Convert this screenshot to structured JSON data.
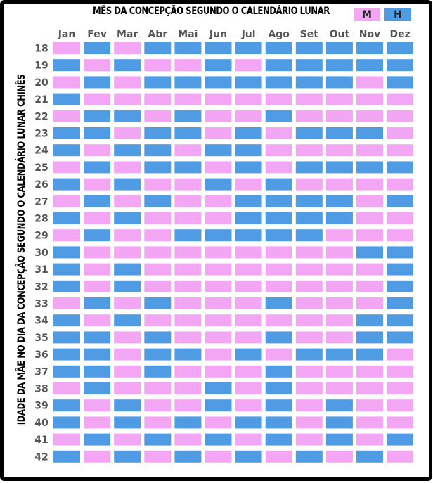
{
  "chart_data": {
    "type": "heatmap",
    "title": "MÊS DA CONCEPÇÃO SEGUNDO O CALENDÁRIO LUNAR",
    "xlabel": "MÊS DA CONCEPÇÃO SEGUNDO O CALENDÁRIO LUNAR",
    "ylabel": "IDADE DA MÃE NO DIA DA CONCEPÇÃO SEGUNDO O CALENDÁRIO LUNAR CHINÊS",
    "x_categories": [
      "Jan",
      "Fev",
      "Mar",
      "Abr",
      "Mai",
      "Jun",
      "Jul",
      "Ago",
      "Set",
      "Out",
      "Nov",
      "Dez"
    ],
    "y_categories": [
      "18",
      "19",
      "20",
      "21",
      "22",
      "23",
      "24",
      "25",
      "26",
      "27",
      "28",
      "29",
      "30",
      "31",
      "32",
      "33",
      "34",
      "35",
      "36",
      "37",
      "38",
      "39",
      "40",
      "41",
      "42"
    ],
    "legend": [
      {
        "label": "M",
        "color": "#f3a6f3"
      },
      {
        "label": "H",
        "color": "#4f9be4"
      }
    ],
    "colors": {
      "M": "#f3a6f3",
      "H": "#4f9be4"
    },
    "cells": [
      [
        "M",
        "H",
        "M",
        "H",
        "H",
        "H",
        "H",
        "H",
        "H",
        "H",
        "H",
        "H"
      ],
      [
        "H",
        "M",
        "H",
        "M",
        "M",
        "H",
        "M",
        "H",
        "H",
        "H",
        "H",
        "H"
      ],
      [
        "M",
        "H",
        "M",
        "H",
        "H",
        "H",
        "H",
        "H",
        "H",
        "H",
        "M",
        "H"
      ],
      [
        "H",
        "M",
        "M",
        "M",
        "M",
        "M",
        "M",
        "M",
        "M",
        "M",
        "M",
        "M"
      ],
      [
        "M",
        "H",
        "H",
        "M",
        "H",
        "M",
        "M",
        "H",
        "M",
        "M",
        "M",
        "M"
      ],
      [
        "H",
        "H",
        "M",
        "H",
        "H",
        "M",
        "H",
        "M",
        "H",
        "H",
        "H",
        "M"
      ],
      [
        "H",
        "M",
        "H",
        "H",
        "M",
        "H",
        "H",
        "M",
        "M",
        "M",
        "M",
        "M"
      ],
      [
        "M",
        "H",
        "M",
        "H",
        "H",
        "M",
        "H",
        "M",
        "H",
        "H",
        "H",
        "H"
      ],
      [
        "H",
        "M",
        "H",
        "M",
        "M",
        "H",
        "M",
        "H",
        "M",
        "M",
        "M",
        "M"
      ],
      [
        "M",
        "H",
        "M",
        "H",
        "M",
        "M",
        "H",
        "H",
        "H",
        "H",
        "M",
        "H"
      ],
      [
        "H",
        "M",
        "H",
        "M",
        "M",
        "M",
        "H",
        "H",
        "H",
        "H",
        "M",
        "M"
      ],
      [
        "M",
        "H",
        "M",
        "M",
        "H",
        "H",
        "H",
        "H",
        "H",
        "M",
        "M",
        "M"
      ],
      [
        "H",
        "M",
        "M",
        "M",
        "M",
        "M",
        "M",
        "M",
        "M",
        "M",
        "H",
        "H"
      ],
      [
        "H",
        "M",
        "H",
        "M",
        "M",
        "M",
        "M",
        "M",
        "M",
        "M",
        "M",
        "H"
      ],
      [
        "H",
        "M",
        "H",
        "M",
        "M",
        "M",
        "M",
        "M",
        "M",
        "M",
        "M",
        "H"
      ],
      [
        "M",
        "H",
        "M",
        "H",
        "M",
        "M",
        "M",
        "H",
        "M",
        "M",
        "M",
        "H"
      ],
      [
        "H",
        "M",
        "H",
        "M",
        "M",
        "M",
        "M",
        "M",
        "M",
        "M",
        "H",
        "H"
      ],
      [
        "H",
        "H",
        "M",
        "H",
        "M",
        "M",
        "M",
        "H",
        "M",
        "M",
        "H",
        "H"
      ],
      [
        "H",
        "H",
        "M",
        "H",
        "H",
        "M",
        "H",
        "M",
        "H",
        "H",
        "H",
        "M"
      ],
      [
        "H",
        "H",
        "M",
        "H",
        "M",
        "M",
        "M",
        "H",
        "M",
        "M",
        "M",
        "M"
      ],
      [
        "M",
        "H",
        "M",
        "M",
        "M",
        "H",
        "M",
        "H",
        "M",
        "M",
        "M",
        "M"
      ],
      [
        "H",
        "M",
        "H",
        "M",
        "M",
        "H",
        "M",
        "H",
        "M",
        "H",
        "M",
        "M"
      ],
      [
        "H",
        "M",
        "H",
        "M",
        "H",
        "M",
        "H",
        "H",
        "M",
        "H",
        "M",
        "M"
      ],
      [
        "M",
        "H",
        "M",
        "H",
        "M",
        "H",
        "M",
        "H",
        "M",
        "H",
        "M",
        "H"
      ],
      [
        "H",
        "M",
        "H",
        "M",
        "H",
        "M",
        "H",
        "M",
        "H",
        "M",
        "H",
        "M"
      ]
    ]
  }
}
